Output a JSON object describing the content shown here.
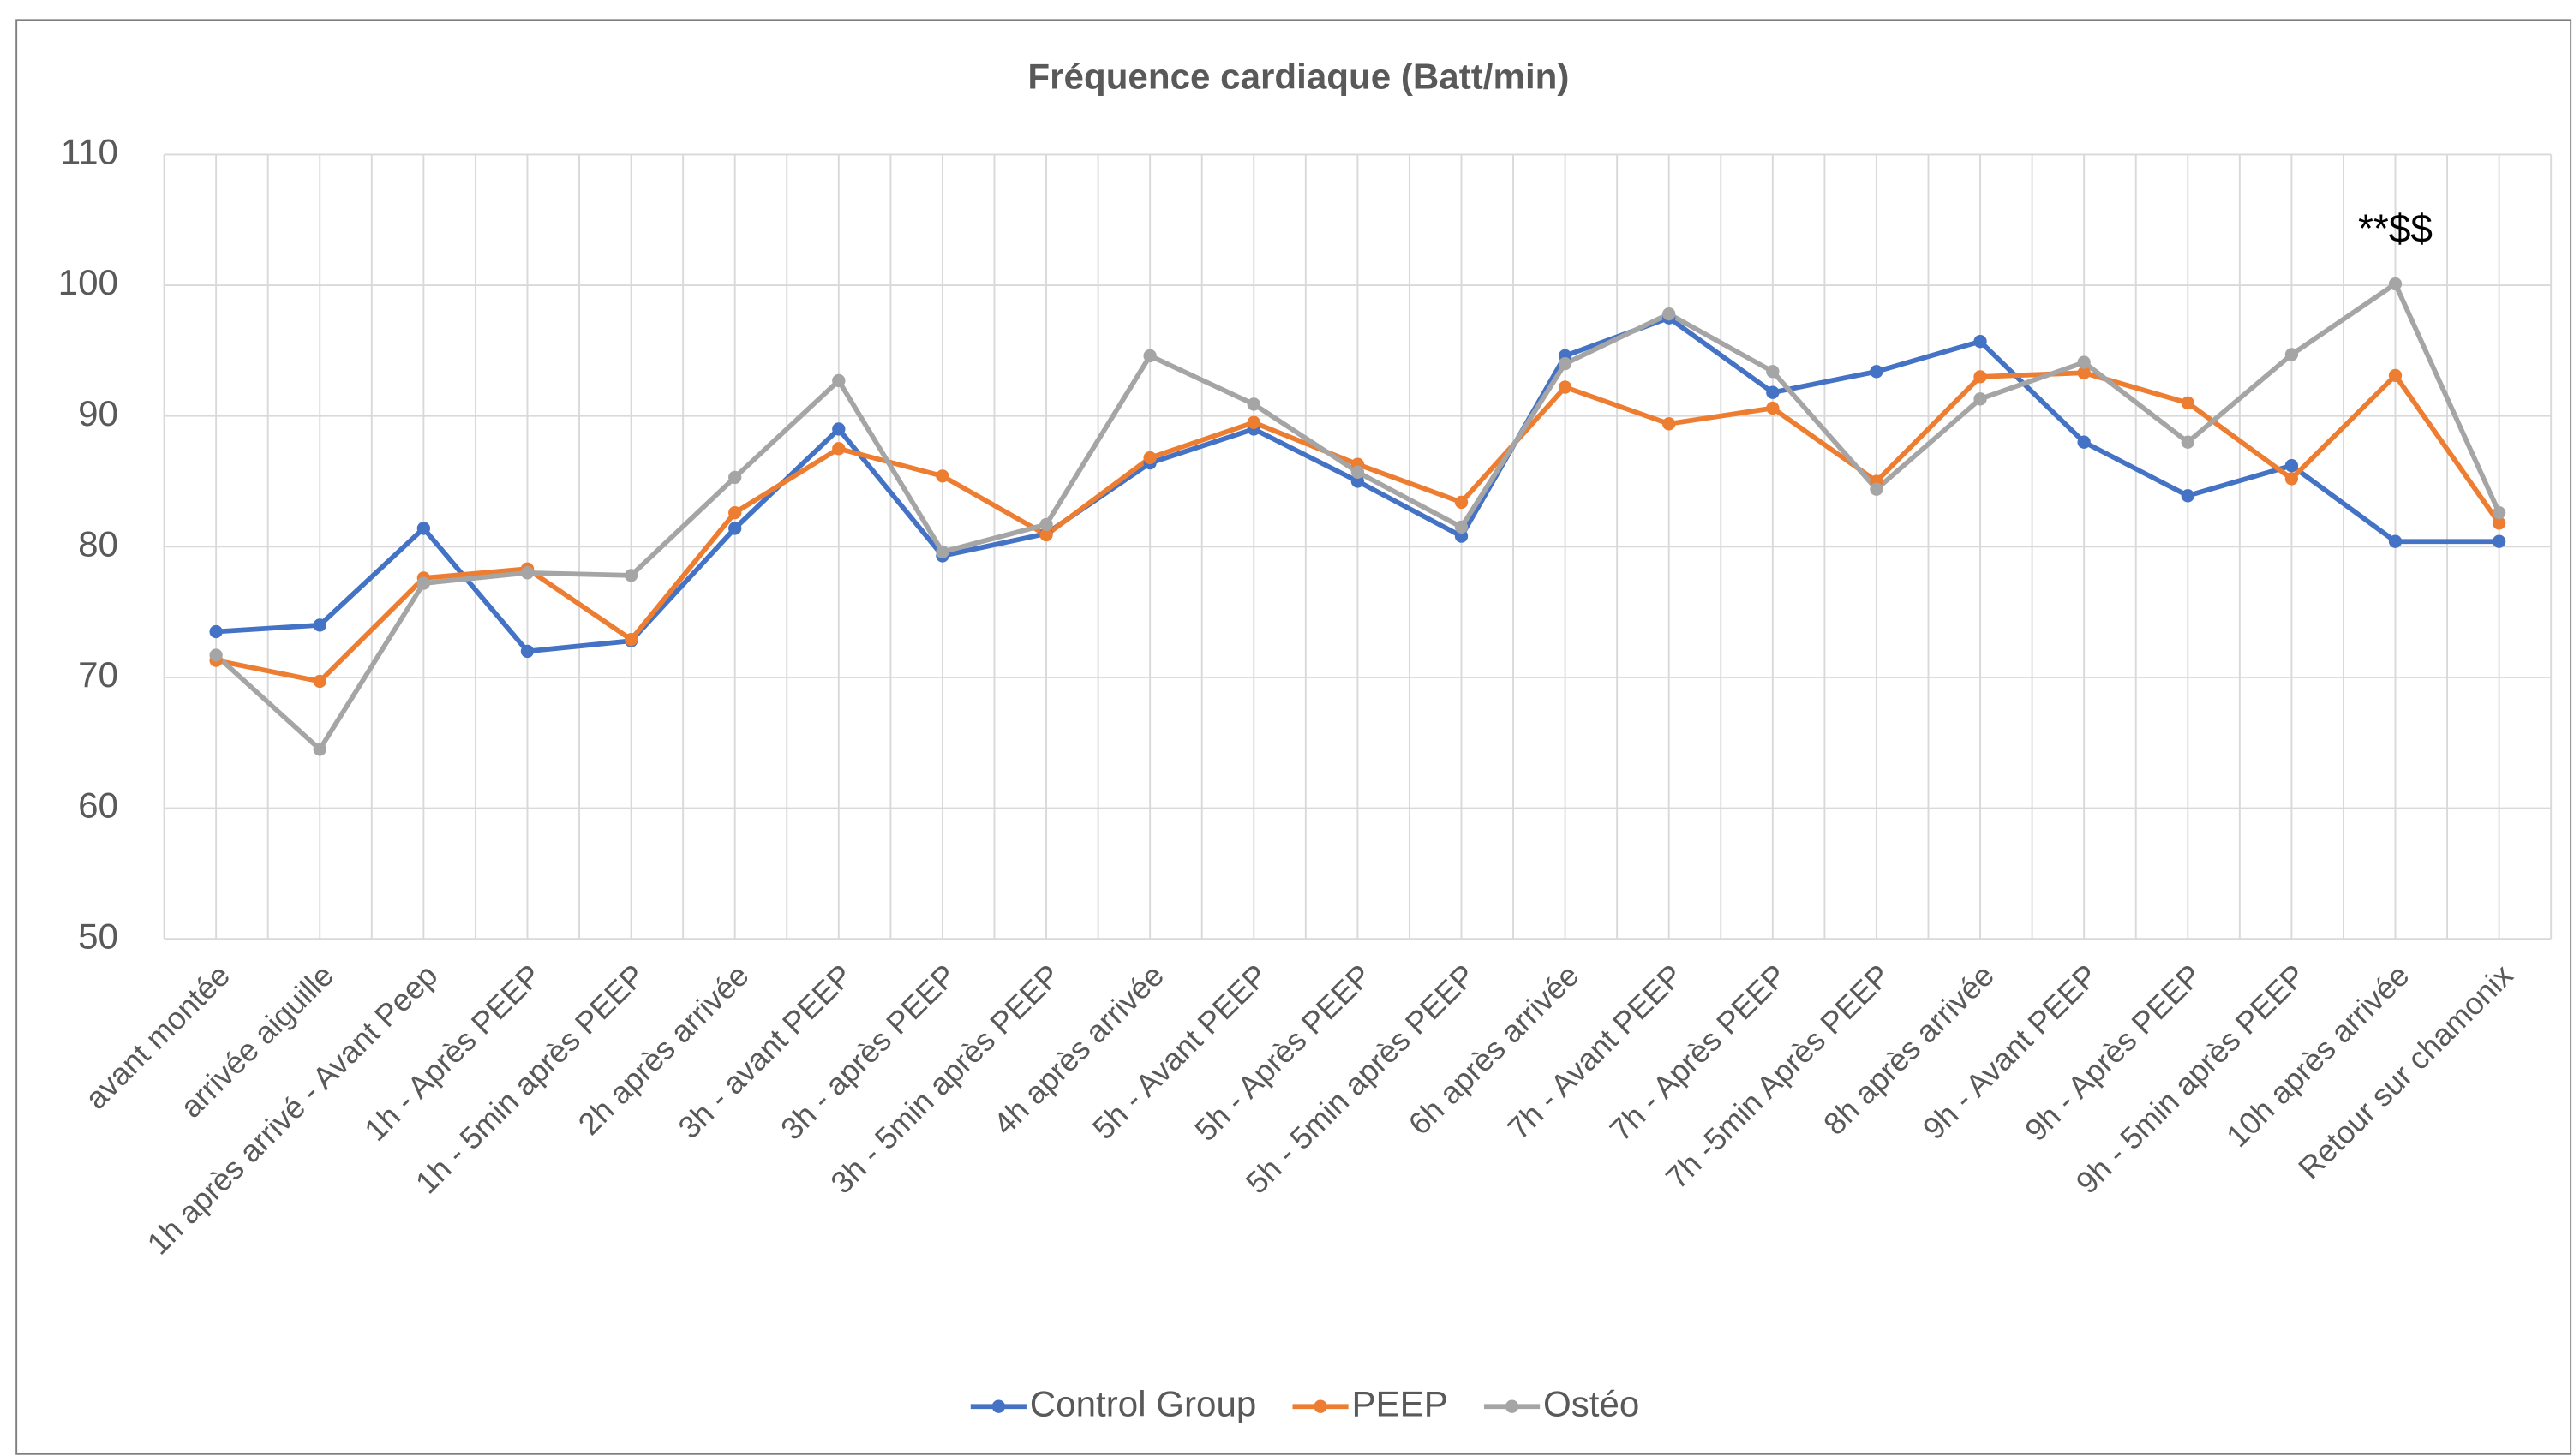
{
  "chart_data": {
    "type": "line",
    "title": "Fréquence cardiaque (Batt/min)",
    "categories": [
      "avant montée",
      "arrivée aiguille",
      "1h après arrivé - Avant Peep",
      "1h - Après PEEP",
      "1h - 5min après PEEP",
      "2h après arrivée",
      "3h - avant PEEP",
      "3h - après PEEP",
      "3h - 5min après PEEP",
      "4h après arrivée",
      "5h - Avant PEEP",
      "5h - Après PEEP",
      "5h - 5min après PEEP",
      "6h après arrivée",
      "7h - Avant PEEP",
      "7h - Après PEEP",
      "7h -5min Après PEEP",
      "8h après arrivée",
      "9h - Avant PEEP",
      "9h - Après PEEP",
      "9h - 5min après PEEP",
      "10h après arrivée",
      "Retour sur chamonix"
    ],
    "series": [
      {
        "name": "Control Group",
        "color": "#4472c4",
        "values": [
          73.5,
          74,
          81.4,
          72,
          72.8,
          81.4,
          89,
          79.3,
          81,
          86.4,
          89,
          85,
          80.8,
          94.6,
          97.5,
          91.8,
          93.4,
          95.7,
          88,
          83.9,
          86.2,
          80.4,
          80.4
        ]
      },
      {
        "name": "PEEP",
        "color": "#ed7d31",
        "values": [
          71.3,
          69.7,
          77.6,
          78.3,
          72.9,
          82.6,
          87.5,
          85.4,
          80.9,
          86.8,
          89.5,
          86.3,
          83.4,
          92.2,
          89.4,
          90.6,
          85,
          93,
          93.3,
          91,
          85.2,
          93.1,
          81.8
        ]
      },
      {
        "name": "Ostéo",
        "color": "#a5a5a5",
        "values": [
          71.7,
          64.5,
          77.2,
          78,
          77.8,
          85.3,
          92.7,
          79.6,
          81.7,
          94.6,
          90.9,
          85.7,
          81.5,
          94,
          97.8,
          93.4,
          84.4,
          91.3,
          94.1,
          88,
          94.7,
          100.1,
          82.6
        ]
      }
    ],
    "ylim": [
      50,
      110
    ],
    "yticks": [
      50,
      60,
      70,
      80,
      90,
      100,
      110
    ],
    "grid": true,
    "legend": "bottom",
    "annotation": "**$$"
  }
}
